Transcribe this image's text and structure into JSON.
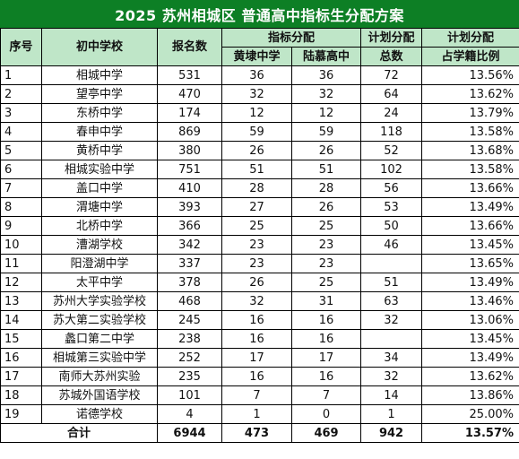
{
  "title": "2025 苏州相城区 普通高中指标生分配方案",
  "headers": {
    "seq": "序号",
    "school": "初中学校",
    "applicants": "报名数",
    "quota_group": "指标分配",
    "huang": "黄埭中学",
    "lu": "陆慕高中",
    "planned_group": "计划分配",
    "total": "总数",
    "ratio_group": "计划分配",
    "ratio": "占学籍比例"
  },
  "rows": [
    {
      "seq": "1",
      "school": "相城中学",
      "applicants": "531",
      "huang": "36",
      "lu": "36",
      "total": "72",
      "ratio": "13.56%"
    },
    {
      "seq": "2",
      "school": "望亭中学",
      "applicants": "470",
      "huang": "32",
      "lu": "32",
      "total": "64",
      "ratio": "13.62%"
    },
    {
      "seq": "3",
      "school": "东桥中学",
      "applicants": "174",
      "huang": "12",
      "lu": "12",
      "total": "24",
      "ratio": "13.79%"
    },
    {
      "seq": "4",
      "school": "春申中学",
      "applicants": "869",
      "huang": "59",
      "lu": "59",
      "total": "118",
      "ratio": "13.58%"
    },
    {
      "seq": "5",
      "school": "黄桥中学",
      "applicants": "380",
      "huang": "26",
      "lu": "26",
      "total": "52",
      "ratio": "13.68%"
    },
    {
      "seq": "6",
      "school": "相城实验中学",
      "applicants": "751",
      "huang": "51",
      "lu": "51",
      "total": "102",
      "ratio": "13.58%"
    },
    {
      "seq": "7",
      "school": "盖口中学",
      "applicants": "410",
      "huang": "28",
      "lu": "28",
      "total": "56",
      "ratio": "13.66%"
    },
    {
      "seq": "8",
      "school": "渭塘中学",
      "applicants": "393",
      "huang": "27",
      "lu": "26",
      "total": "53",
      "ratio": "13.49%"
    },
    {
      "seq": "9",
      "school": "北桥中学",
      "applicants": "366",
      "huang": "25",
      "lu": "25",
      "total": "50",
      "ratio": "13.66%"
    },
    {
      "seq": "10",
      "school": "漕湖学校",
      "applicants": "342",
      "huang": "23",
      "lu": "23",
      "total": "46",
      "ratio": "13.45%"
    },
    {
      "seq": "11",
      "school": "阳澄湖中学",
      "applicants": "337",
      "huang": "23",
      "lu": "23",
      "total": "",
      "ratio": "13.65%"
    },
    {
      "seq": "12",
      "school": "太平中学",
      "applicants": "378",
      "huang": "26",
      "lu": "25",
      "total": "51",
      "ratio": "13.49%"
    },
    {
      "seq": "13",
      "school": "苏州大学实验学校",
      "applicants": "468",
      "huang": "32",
      "lu": "31",
      "total": "63",
      "ratio": "13.46%"
    },
    {
      "seq": "14",
      "school": "苏大第二实验学校",
      "applicants": "245",
      "huang": "16",
      "lu": "16",
      "total": "32",
      "ratio": "13.06%"
    },
    {
      "seq": "15",
      "school": "蠡口第二中学",
      "applicants": "238",
      "huang": "16",
      "lu": "16",
      "total": "",
      "ratio": "13.45%"
    },
    {
      "seq": "16",
      "school": "相城第三实验中学",
      "applicants": "252",
      "huang": "17",
      "lu": "17",
      "total": "34",
      "ratio": "13.49%"
    },
    {
      "seq": "17",
      "school": "南师大苏州实验",
      "applicants": "235",
      "huang": "16",
      "lu": "16",
      "total": "32",
      "ratio": "13.62%"
    },
    {
      "seq": "18",
      "school": "苏城外国语学校",
      "applicants": "101",
      "huang": "7",
      "lu": "7",
      "total": "14",
      "ratio": "13.86%"
    },
    {
      "seq": "19",
      "school": "诺德学校",
      "applicants": "4",
      "huang": "1",
      "lu": "0",
      "total": "1",
      "ratio": "25.00%"
    }
  ],
  "footer": {
    "label": "合计",
    "applicants": "6944",
    "huang": "473",
    "lu": "469",
    "total": "942",
    "ratio": "13.57%"
  }
}
